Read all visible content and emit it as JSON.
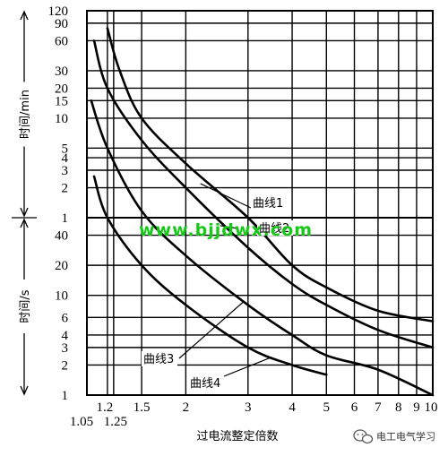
{
  "chart_data": {
    "type": "line",
    "xlabel": "过电流整定倍数",
    "x_axis": {
      "scale": "log",
      "range": [
        1.05,
        10
      ],
      "ticks": [
        1.05,
        1.2,
        1.25,
        1.5,
        2,
        3,
        4,
        5,
        6,
        7,
        8,
        9,
        10
      ],
      "tick_labels": [
        "1.05",
        "1.2",
        "1.25",
        "1.5",
        "2",
        "3",
        "4",
        "5",
        "6",
        "7",
        "8",
        "9",
        "10"
      ]
    },
    "y_axis": {
      "scale": "log",
      "grid": true,
      "minutes_section": {
        "label": "时间/min",
        "range_min": [
          1,
          120
        ],
        "ticks": [
          1,
          2,
          3,
          4,
          5,
          10,
          15,
          20,
          30,
          60,
          90,
          120
        ],
        "tick_labels": [
          "1",
          "2",
          "3",
          "4",
          "5",
          "10",
          "15",
          "20",
          "30",
          "60",
          "90",
          "120"
        ]
      },
      "seconds_section": {
        "label": "时间/s",
        "range_s": [
          1,
          60
        ],
        "ticks": [
          1,
          2,
          3,
          4,
          6,
          10,
          20,
          40
        ],
        "tick_labels": [
          "1",
          "2",
          "3",
          "4",
          "6",
          "10",
          "20",
          "40"
        ]
      }
    },
    "series": [
      {
        "name": "曲线1",
        "label": "曲线1",
        "color": "#000000",
        "points": [
          [
            1.2,
            "80 min"
          ],
          [
            1.3,
            "30 min"
          ],
          [
            1.5,
            "10 min"
          ],
          [
            2,
            "3.5 min"
          ],
          [
            3,
            "60 s"
          ],
          [
            4,
            "20 s"
          ],
          [
            5,
            "12 s"
          ],
          [
            7,
            "7 s"
          ],
          [
            10,
            "5.5 s"
          ]
        ]
      },
      {
        "name": "曲线2",
        "label": "曲线2",
        "color": "#000000",
        "points": [
          [
            1.1,
            "60 min"
          ],
          [
            1.2,
            "20 min"
          ],
          [
            1.5,
            "6 min"
          ],
          [
            2,
            "2 min"
          ],
          [
            3,
            "30 s"
          ],
          [
            4,
            "13 s"
          ],
          [
            5,
            "8 s"
          ],
          [
            7,
            "4.5 s"
          ],
          [
            10,
            "3 s"
          ]
        ]
      },
      {
        "name": "曲线3",
        "label": "曲线3",
        "color": "#000000",
        "points": [
          [
            1.08,
            "15 min"
          ],
          [
            1.2,
            "5 min"
          ],
          [
            1.5,
            "70 s"
          ],
          [
            2,
            "25 s"
          ],
          [
            3,
            "8 s"
          ],
          [
            4,
            "4 s"
          ],
          [
            5,
            "2.5 s"
          ],
          [
            7,
            "1.8 s"
          ],
          [
            10,
            "1 s"
          ]
        ]
      },
      {
        "name": "曲线4",
        "label": "曲线4",
        "color": "#000000",
        "points": [
          [
            1.1,
            "2.6 min"
          ],
          [
            1.2,
            "60 s"
          ],
          [
            1.5,
            "20 s"
          ],
          [
            2,
            "8 s"
          ],
          [
            3,
            "3 s"
          ],
          [
            4,
            "2 s"
          ],
          [
            5,
            "1.6 s"
          ]
        ]
      }
    ],
    "watermark": "www.bjjdwx.com",
    "brand": "电工电气学习"
  }
}
